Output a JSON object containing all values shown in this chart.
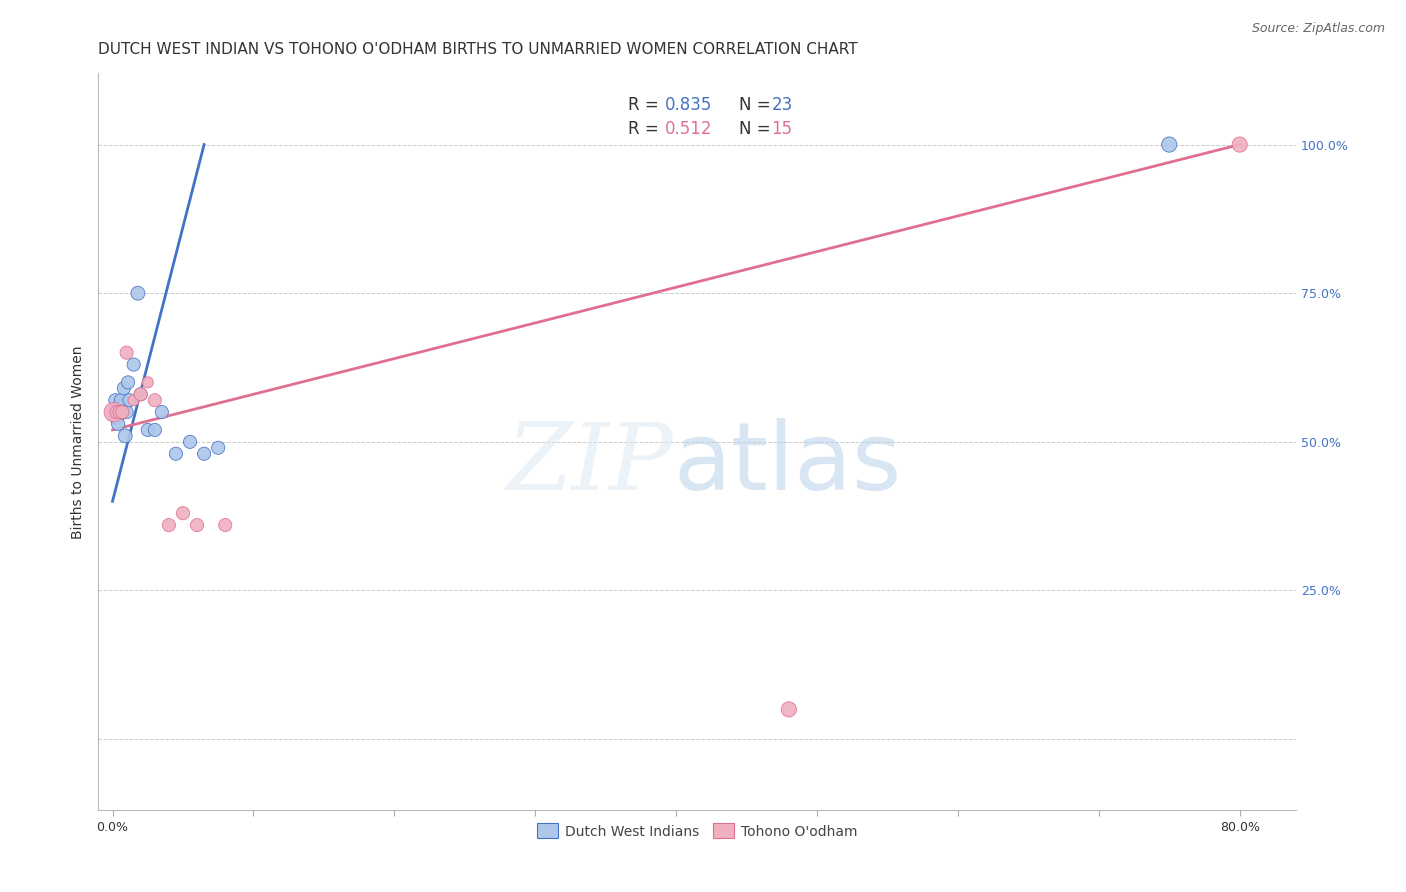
{
  "title": "DUTCH WEST INDIAN VS TOHONO O'ODHAM BIRTHS TO UNMARRIED WOMEN CORRELATION CHART",
  "source": "Source: ZipAtlas.com",
  "ylabel": "Births to Unmarried Women",
  "xlim": [
    -1.0,
    84.0
  ],
  "ylim": [
    -12.0,
    112.0
  ],
  "x_tick_positions": [
    0,
    10,
    20,
    30,
    40,
    50,
    60,
    70,
    80
  ],
  "x_tick_labels": [
    "0.0%",
    "",
    "",
    "",
    "",
    "",
    "",
    "",
    "80.0%"
  ],
  "y_tick_positions": [
    0,
    25,
    50,
    75,
    100
  ],
  "y_tick_labels_right": [
    "",
    "25.0%",
    "50.0%",
    "75.0%",
    "100.0%"
  ],
  "blue_scatter_x": [
    0.1,
    0.2,
    0.3,
    0.4,
    0.5,
    0.6,
    0.7,
    0.8,
    0.9,
    1.0,
    1.1,
    1.2,
    1.5,
    1.8,
    2.0,
    2.5,
    3.0,
    3.5,
    4.5,
    5.5,
    6.5,
    7.5,
    75.0
  ],
  "blue_scatter_y": [
    55.0,
    57.0,
    54.0,
    53.0,
    56.0,
    57.0,
    55.0,
    59.0,
    51.0,
    55.0,
    60.0,
    57.0,
    63.0,
    75.0,
    58.0,
    52.0,
    52.0,
    55.0,
    48.0,
    50.0,
    48.0,
    49.0,
    100.0
  ],
  "blue_scatter_sizes": [
    100,
    90,
    90,
    90,
    90,
    90,
    100,
    90,
    100,
    90,
    90,
    90,
    90,
    100,
    90,
    90,
    90,
    90,
    90,
    90,
    90,
    90,
    120
  ],
  "pink_scatter_x": [
    0.1,
    0.3,
    0.5,
    0.7,
    1.0,
    1.5,
    2.0,
    2.5,
    3.0,
    4.0,
    5.0,
    6.0,
    8.0,
    48.0,
    80.0
  ],
  "pink_scatter_y": [
    55.0,
    55.0,
    55.0,
    55.0,
    65.0,
    57.0,
    58.0,
    60.0,
    57.0,
    36.0,
    38.0,
    36.0,
    36.0,
    5.0,
    100.0
  ],
  "pink_scatter_sizes": [
    200,
    90,
    90,
    90,
    90,
    65.0,
    90,
    65.0,
    90,
    90,
    90,
    90,
    90,
    120,
    120
  ],
  "blue_line_x": [
    0.0,
    6.5
  ],
  "blue_line_y": [
    40.0,
    100.0
  ],
  "pink_line_x": [
    0.0,
    80.0
  ],
  "pink_line_y": [
    52.0,
    100.0
  ],
  "blue_color": "#4472c4",
  "pink_color": "#e07090",
  "blue_scatter_facecolor": "#adc6ea",
  "pink_scatter_facecolor": "#f0b0c0",
  "grid_color": "#cccccc",
  "bottom_legend": [
    "Dutch West Indians",
    "Tohono O'odham"
  ],
  "title_fontsize": 11,
  "axis_label_fontsize": 10,
  "tick_fontsize": 9,
  "source_fontsize": 9,
  "right_tick_color": "#4472c4"
}
